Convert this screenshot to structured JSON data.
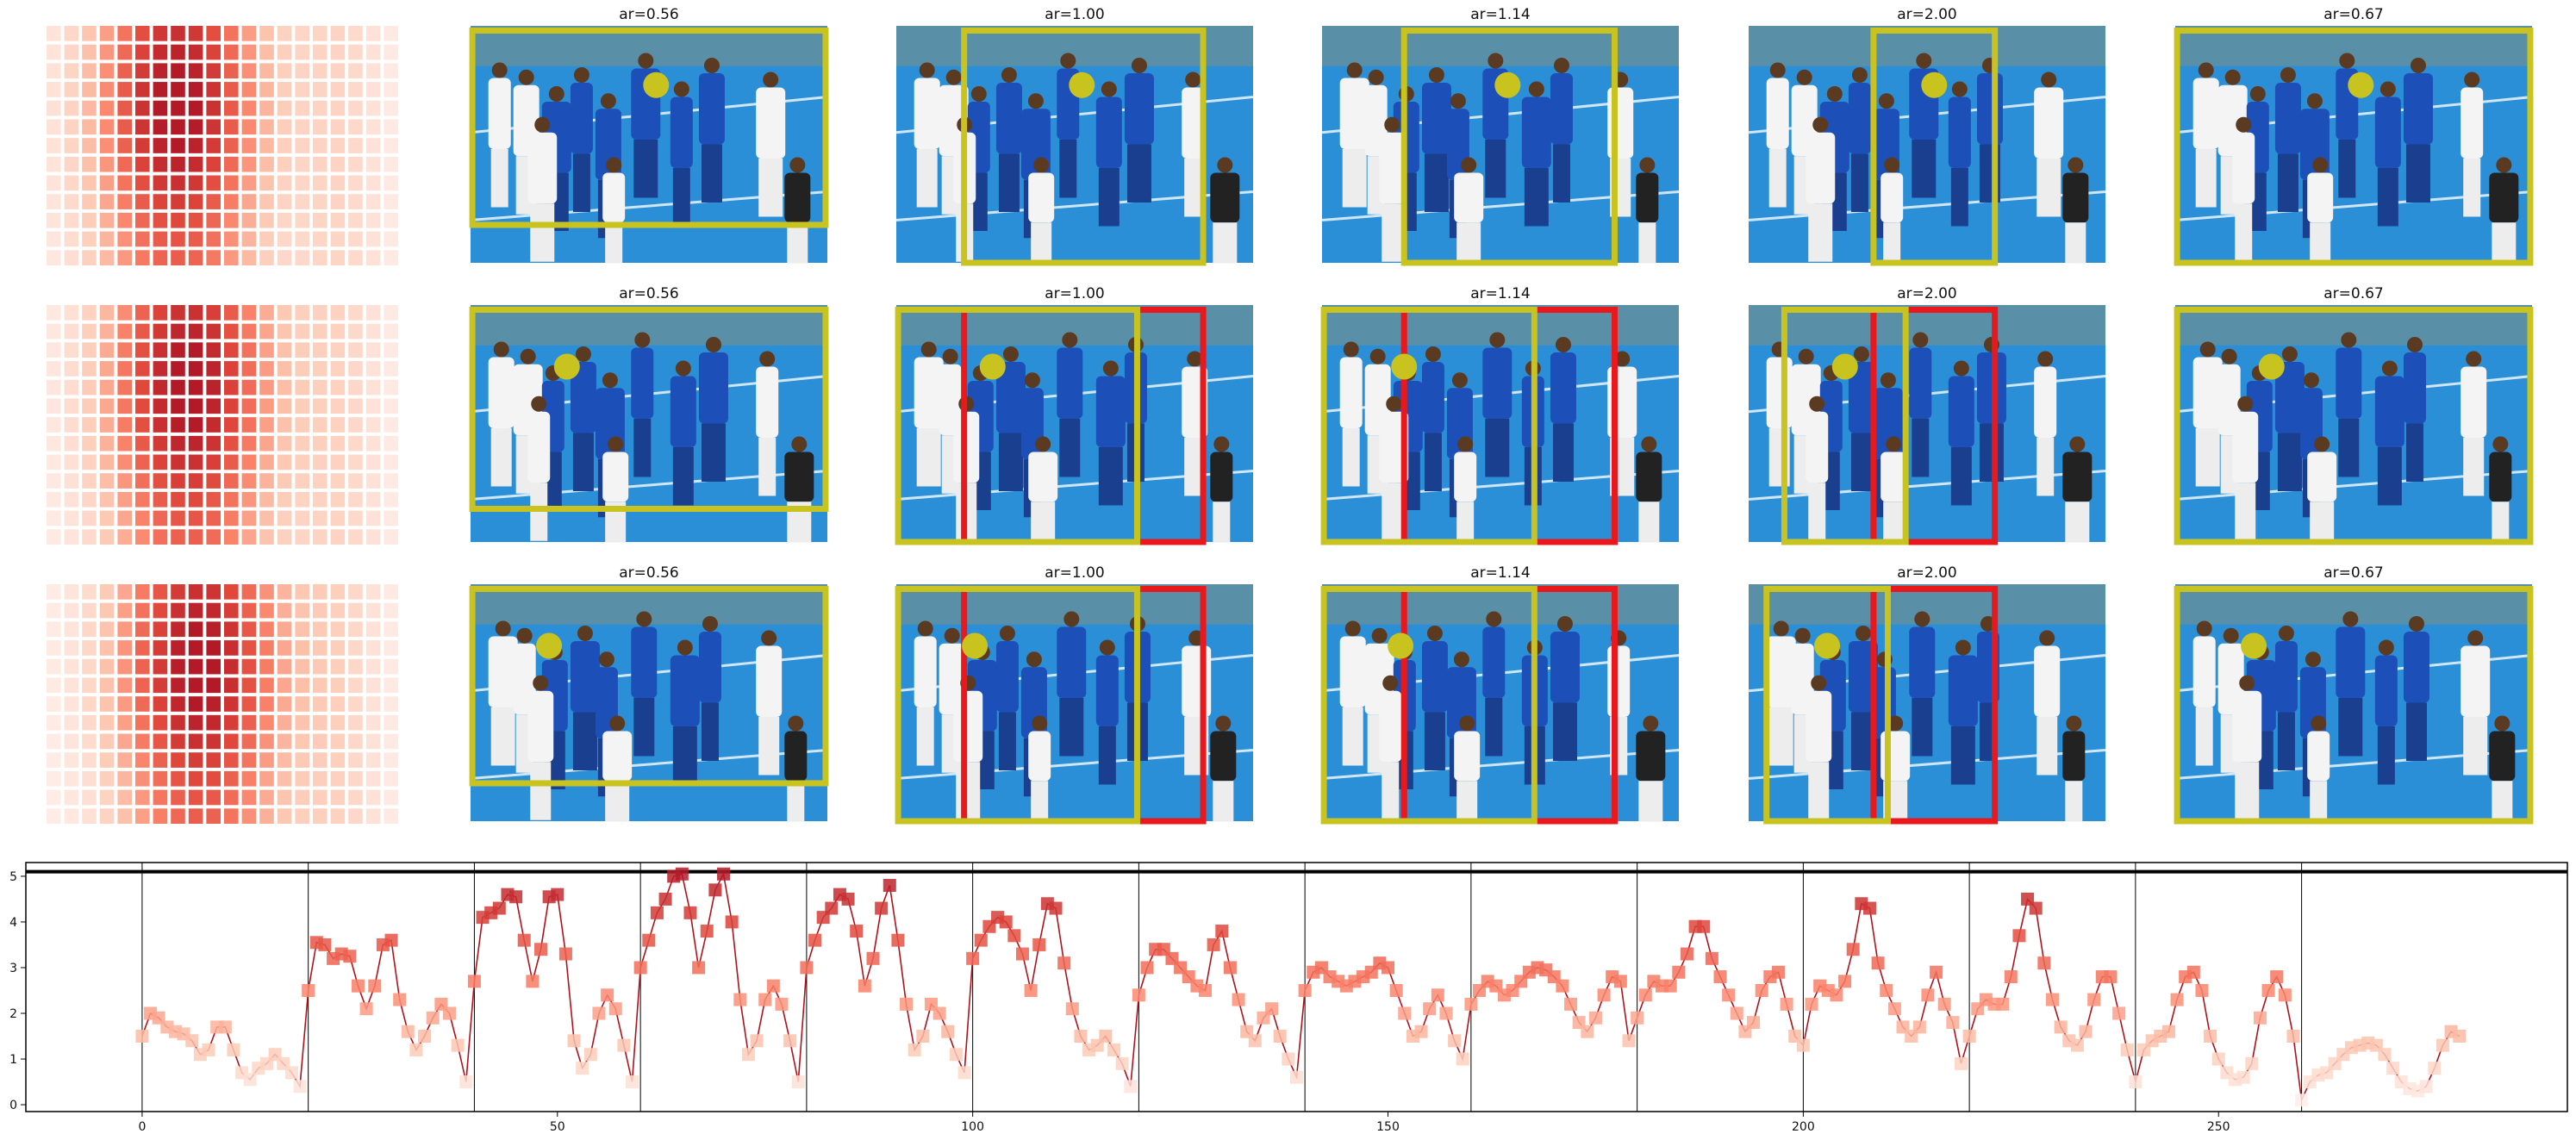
{
  "panels": {
    "rows": [
      {
        "row": 1,
        "titles": [
          "ar=0.56",
          "ar=1.00",
          "ar=1.14",
          "ar=2.00",
          "ar=0.67"
        ]
      },
      {
        "row": 2,
        "titles": [
          "ar=0.56",
          "ar=1.00",
          "ar=1.14",
          "ar=2.00",
          "ar=0.67"
        ]
      },
      {
        "row": 3,
        "titles": [
          "ar=0.56",
          "ar=1.00",
          "ar=1.14",
          "ar=2.00",
          "ar=0.67"
        ]
      }
    ],
    "colors": {
      "crop_box": "#c8c31f",
      "red_box": "#e8181c",
      "dot": "#c8c31f",
      "field": "#2b8fd8"
    }
  },
  "chart_data": {
    "type": "line",
    "title": "",
    "xlabel": "",
    "ylabel": "",
    "xlim": [
      -14,
      292
    ],
    "ylim": [
      -0.15,
      5.3
    ],
    "xticks": [
      "0",
      "50",
      "100",
      "150",
      "200",
      "250"
    ],
    "xtick_values": [
      0,
      50,
      100,
      150,
      200,
      250
    ],
    "yticks": [
      "0",
      "1",
      "2",
      "3",
      "4",
      "5"
    ],
    "ytick_values": [
      0,
      1,
      2,
      3,
      4,
      5
    ],
    "hline": 5.1,
    "vlines": [
      0,
      20,
      40,
      60,
      80,
      100,
      120,
      140,
      160,
      180,
      200,
      220,
      240,
      260
    ],
    "series": [
      {
        "values": [
          1.5,
          2.0,
          1.9,
          1.7,
          1.6,
          1.55,
          1.4,
          1.1,
          1.2,
          1.7,
          1.7,
          1.2,
          0.7,
          0.55,
          0.8,
          0.9,
          1.1,
          0.9,
          0.7,
          0.4,
          2.5,
          3.55,
          3.5,
          3.2,
          3.3,
          3.25,
          2.6,
          2.1,
          2.6,
          3.5,
          3.6,
          2.3,
          1.6,
          1.2,
          1.5,
          1.9,
          2.2,
          2.0,
          1.3,
          0.5,
          2.7,
          4.1,
          4.2,
          4.3,
          4.6,
          4.55,
          3.6,
          2.7,
          3.4,
          4.55,
          4.6,
          3.3,
          1.4,
          0.8,
          1.1,
          2.0,
          2.4,
          2.1,
          1.3,
          0.5,
          3.0,
          3.6,
          4.2,
          4.5,
          5.0,
          5.05,
          4.2,
          3.0,
          3.8,
          4.7,
          5.05,
          4.0,
          2.3,
          1.1,
          1.4,
          2.3,
          2.6,
          2.2,
          1.4,
          0.5,
          3.0,
          3.6,
          4.1,
          4.3,
          4.6,
          4.5,
          3.8,
          2.6,
          3.2,
          4.3,
          4.8,
          3.6,
          2.2,
          1.2,
          1.5,
          2.2,
          2.0,
          1.6,
          1.1,
          0.7,
          3.2,
          3.6,
          3.9,
          4.1,
          4.0,
          3.7,
          3.3,
          2.5,
          3.5,
          4.4,
          4.3,
          3.1,
          2.1,
          1.5,
          1.2,
          1.3,
          1.5,
          1.2,
          0.9,
          0.4,
          2.4,
          3.0,
          3.4,
          3.4,
          3.2,
          3.0,
          2.8,
          2.6,
          2.5,
          3.5,
          3.8,
          3.0,
          2.3,
          1.6,
          1.4,
          1.9,
          2.1,
          1.5,
          1.0,
          0.6,
          2.5,
          2.9,
          3.0,
          2.8,
          2.7,
          2.6,
          2.7,
          2.8,
          2.9,
          3.1,
          3.0,
          2.5,
          2.0,
          1.5,
          1.6,
          2.1,
          2.4,
          2.0,
          1.4,
          1.0,
          2.2,
          2.5,
          2.7,
          2.6,
          2.4,
          2.5,
          2.7,
          2.9,
          3.0,
          2.95,
          2.8,
          2.6,
          2.2,
          1.8,
          1.6,
          1.9,
          2.4,
          2.8,
          2.7,
          1.4,
          1.9,
          2.4,
          2.7,
          2.6,
          2.6,
          2.9,
          3.3,
          3.9,
          3.9,
          3.2,
          2.8,
          2.4,
          2.0,
          1.6,
          1.8,
          2.5,
          2.8,
          2.9,
          2.2,
          1.5,
          1.3,
          2.2,
          2.6,
          2.5,
          2.4,
          2.7,
          3.4,
          4.4,
          4.3,
          3.1,
          2.5,
          2.1,
          1.7,
          1.5,
          1.7,
          2.4,
          2.9,
          2.2,
          1.8,
          0.9,
          1.5,
          2.1,
          2.3,
          2.2,
          2.2,
          2.8,
          3.7,
          4.5,
          4.3,
          3.1,
          2.3,
          1.7,
          1.4,
          1.3,
          1.6,
          2.3,
          2.8,
          2.8,
          2.0,
          1.2,
          0.5,
          1.2,
          1.4,
          1.5,
          1.6,
          2.3,
          2.8,
          2.9,
          2.5,
          1.5,
          1.0,
          0.7,
          0.55,
          0.6,
          0.9,
          1.9,
          2.5,
          2.8,
          2.4,
          1.5,
          0.1,
          0.5,
          0.65,
          0.7,
          0.9,
          1.1,
          1.25,
          1.3,
          1.35,
          1.3,
          1.1,
          0.8,
          0.5,
          0.35,
          0.3,
          0.4,
          0.8,
          1.3,
          1.6,
          1.5
        ]
      }
    ]
  }
}
